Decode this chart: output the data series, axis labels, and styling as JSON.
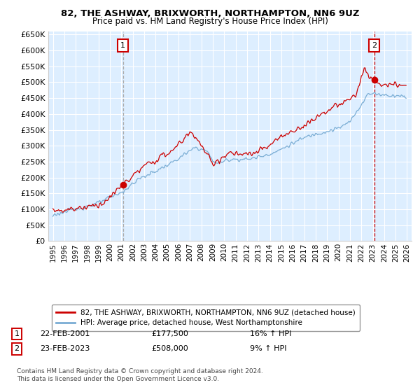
{
  "title": "82, THE ASHWAY, BRIXWORTH, NORTHAMPTON, NN6 9UZ",
  "subtitle": "Price paid vs. HM Land Registry's House Price Index (HPI)",
  "legend_line1": "82, THE ASHWAY, BRIXWORTH, NORTHAMPTON, NN6 9UZ (detached house)",
  "legend_line2": "HPI: Average price, detached house, West Northamptonshire",
  "annotation1_date": "22-FEB-2001",
  "annotation1_price": "£177,500",
  "annotation1_hpi": "16% ↑ HPI",
  "annotation2_date": "23-FEB-2023",
  "annotation2_price": "£508,000",
  "annotation2_hpi": "9% ↑ HPI",
  "footnote": "Contains HM Land Registry data © Crown copyright and database right 2024.\nThis data is licensed under the Open Government Licence v3.0.",
  "red_color": "#cc0000",
  "blue_color": "#7aadd4",
  "bg_color": "#ddeeff",
  "ylim_min": 0,
  "ylim_max": 660000,
  "ytick_step": 50000,
  "purchase1_year": 2001.13,
  "purchase1_price": 177500,
  "purchase2_year": 2023.13,
  "purchase2_price": 508000
}
